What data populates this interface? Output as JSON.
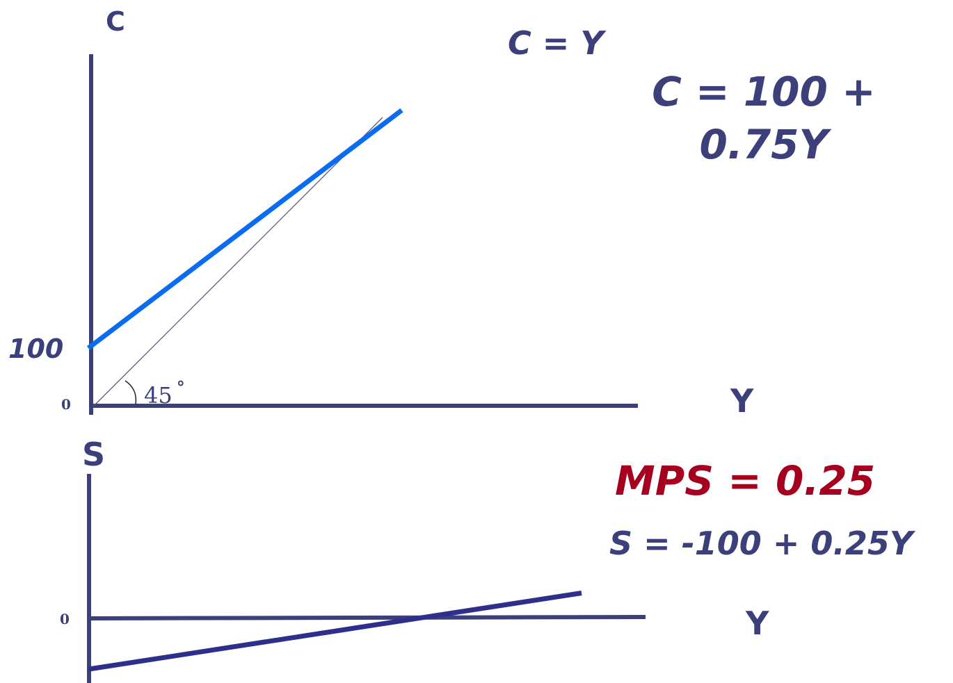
{
  "colors": {
    "axis": "#3b3f7a",
    "consumption_line": "#0a6cf0",
    "forty_five_line": "#5a5a7a",
    "saving_line": "#2e2f8c",
    "text_navy": "#3b3f7a",
    "text_red": "#a5001e"
  },
  "chart_data": [
    {
      "type": "line",
      "title": "",
      "xlabel": "Y",
      "ylabel": "C",
      "origin_label": "0",
      "xlim": [
        0,
        600
      ],
      "ylim": [
        0,
        600
      ],
      "ytick_labels": [
        {
          "value": 100,
          "label": "100"
        }
      ],
      "angle_label": "45",
      "angle_degree_symbol": "°",
      "series": [
        {
          "name": "C = Y",
          "x": [
            0,
            500
          ],
          "y": [
            0,
            500
          ],
          "role": "forty_five_line"
        },
        {
          "name": "",
          "x": [
            0,
            550
          ],
          "y": [
            100,
            512.5
          ],
          "role": "consumption_line"
        }
      ],
      "annotations": {
        "equation_line1": "C = 100 +",
        "equation_line2": "0.75Y"
      }
    },
    {
      "type": "line",
      "title": "",
      "xlabel": "Y",
      "ylabel": "S",
      "origin_label": "0",
      "xlim": [
        0,
        650
      ],
      "ylim": [
        -100,
        200
      ],
      "series": [
        {
          "name": "",
          "x": [
            0,
            600
          ],
          "y": [
            -100,
            50
          ],
          "role": "saving_line"
        }
      ],
      "annotations": {
        "mps": "MPS = 0.25",
        "equation": "S = -100 + 0.25Y"
      }
    }
  ]
}
